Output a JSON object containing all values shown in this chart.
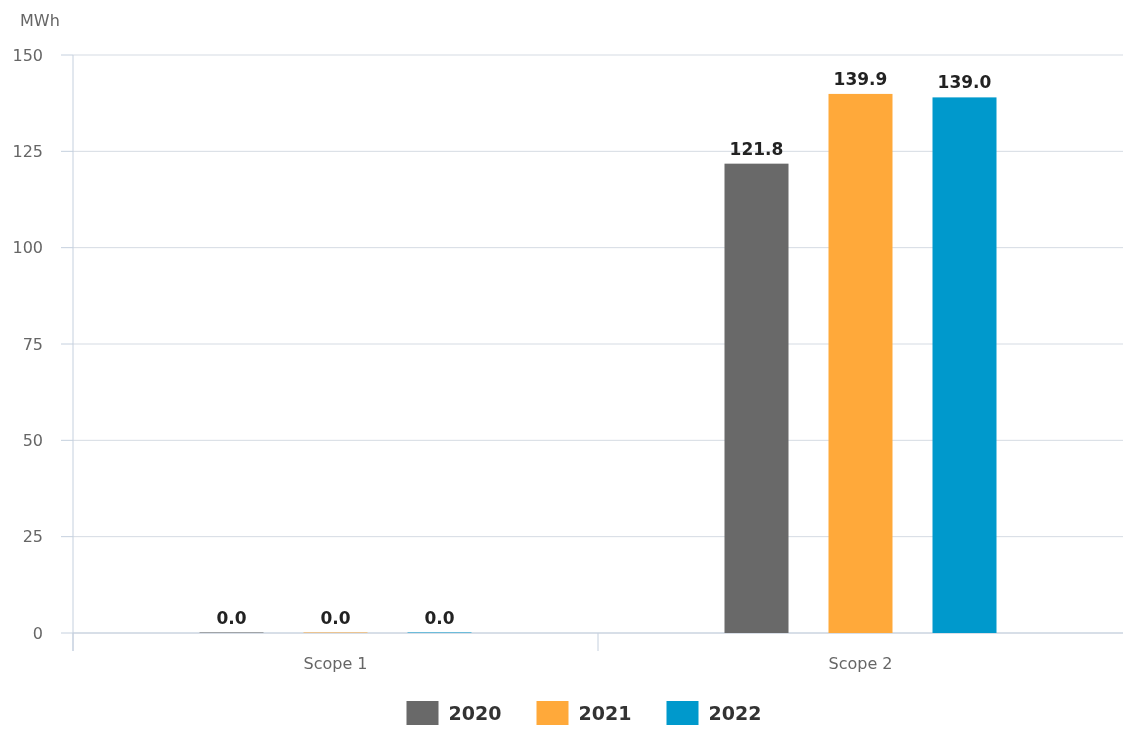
{
  "chart_data": {
    "type": "bar",
    "ylabel": "MWh",
    "categories": [
      "Scope 1",
      "Scope 2"
    ],
    "series": [
      {
        "name": "2020",
        "color": "#696969",
        "values": [
          0,
          121.8
        ],
        "value_labels": [
          "0.0",
          "121.8"
        ]
      },
      {
        "name": "2021",
        "color": "#ffa93a",
        "values": [
          0,
          139.9
        ],
        "value_labels": [
          "0.0",
          "139.9"
        ]
      },
      {
        "name": "2022",
        "color": "#0099cc",
        "values": [
          0,
          139.0
        ],
        "value_labels": [
          "0.0",
          "139.0"
        ]
      }
    ],
    "ylim": [
      0,
      150
    ],
    "yticks": [
      0,
      25,
      50,
      75,
      100,
      125,
      150
    ],
    "grid": "y",
    "legend": "bottom"
  }
}
